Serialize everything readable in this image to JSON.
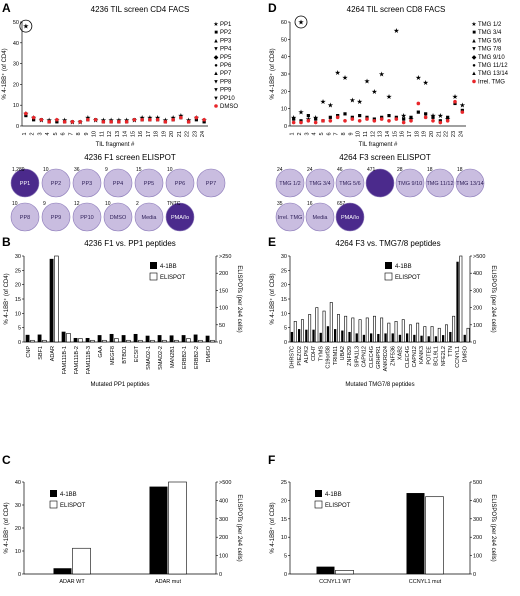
{
  "panels": {
    "A": {
      "letter": "A",
      "title": "4236 TIL screen CD4 FACS"
    },
    "D": {
      "letter": "D",
      "title": "4264 TIL screen CD8 FACS"
    },
    "E1": {
      "title": "4236 F1 screen ELISPOT"
    },
    "E2": {
      "title": "4264 F3 screen ELISPOT"
    },
    "B": {
      "letter": "B",
      "title": "4236 F1 vs. PP1 peptides"
    },
    "E": {
      "letter": "E",
      "title": "4264 F3 vs. TMG7/8 peptides"
    },
    "C": {
      "letter": "C"
    },
    "F": {
      "letter": "F"
    }
  },
  "elispot_left": [
    {
      "label": "PP1",
      "count": "1,289",
      "dark": true
    },
    {
      "label": "PP2",
      "count": "10",
      "dark": false
    },
    {
      "label": "PP3",
      "count": "36",
      "dark": false
    },
    {
      "label": "PP4",
      "count": "9",
      "dark": false
    },
    {
      "label": "PP5",
      "count": "15",
      "dark": false
    },
    {
      "label": "PP6",
      "count": "10",
      "dark": false
    },
    {
      "label": "PP7",
      "count": "",
      "dark": false
    },
    {
      "label": "PP8",
      "count": "10",
      "dark": false
    },
    {
      "label": "PP9",
      "count": "9",
      "dark": false
    },
    {
      "label": "PP10",
      "count": "12",
      "dark": false
    },
    {
      "label": "DMSO",
      "count": "10",
      "dark": false
    },
    {
      "label": "Media",
      "count": "2",
      "dark": false
    },
    {
      "label": "PMA/Io",
      "count": "TNTC",
      "dark": true
    }
  ],
  "elispot_right": [
    {
      "label": "TMG 1/2",
      "count": "24",
      "dark": false
    },
    {
      "label": "TMG 3/4",
      "count": "24",
      "dark": false
    },
    {
      "label": "TMG 5/6",
      "count": "46",
      "dark": false
    },
    {
      "label": "",
      "count": "471",
      "dark": true
    },
    {
      "label": "TMG 9/10",
      "count": "28",
      "dark": false
    },
    {
      "label": "TMG 11/12",
      "count": "18",
      "dark": false
    },
    {
      "label": "TMG 13/14",
      "count": "18",
      "dark": false
    },
    {
      "label": "Irrel. TMG",
      "count": "35",
      "dark": false
    },
    {
      "label": "Media",
      "count": "16",
      "dark": false
    },
    {
      "label": "PMA/Io",
      "count": "657",
      "dark": true
    }
  ],
  "chart_data": [
    {
      "id": "A",
      "type": "scatter",
      "title": "4236 TIL screen CD4 FACS",
      "xlabel": "TIL fragment #",
      "ylabel": "% 4-1BB⁺ (of CD4)",
      "ylim": [
        0,
        50
      ],
      "yticks": [
        0,
        10,
        20,
        30,
        40,
        50
      ],
      "categories": [
        "1",
        "2",
        "3",
        "4",
        "5",
        "6",
        "7",
        "8",
        "9",
        "10",
        "11",
        "12",
        "13",
        "14",
        "15",
        "16",
        "17",
        "18",
        "19",
        "20",
        "21",
        "22",
        "23",
        "24"
      ],
      "series": [
        {
          "name": "PP1",
          "values": [
            6,
            4,
            3,
            3,
            3,
            3,
            2,
            2,
            4,
            3,
            3,
            3,
            3,
            3,
            3,
            4,
            4,
            4,
            3,
            4,
            5,
            3,
            4,
            3
          ]
        },
        {
          "name": "PP2",
          "values": [
            5,
            3,
            3,
            2,
            2,
            2,
            2,
            2,
            3,
            3,
            2,
            2,
            2,
            2,
            3,
            3,
            3,
            3,
            2,
            3,
            4,
            2,
            3,
            2
          ]
        },
        {
          "name": "DMSO",
          "values": [
            6,
            4,
            3,
            2,
            3,
            2,
            2,
            2,
            3,
            3,
            2,
            2,
            2,
            2,
            3,
            3,
            3,
            3,
            2,
            3,
            4,
            2,
            4,
            3
          ]
        }
      ],
      "outliers": [
        {
          "x": "1",
          "y": 48,
          "series": "PP1"
        }
      ],
      "legend": [
        "PP1",
        "PP2",
        "PP3",
        "PP4",
        "PP5",
        "PP6",
        "PP7",
        "PP8",
        "PP9",
        "PP10",
        "DMSO"
      ]
    },
    {
      "id": "D",
      "type": "scatter",
      "title": "4264 TIL screen CD8 FACS",
      "xlabel": "TIL fragment #",
      "ylabel": "% 4-1BB⁺ (of CD8)",
      "ylim": [
        0,
        60
      ],
      "yticks": [
        0,
        10,
        20,
        30,
        40,
        50,
        60
      ],
      "categories": [
        "1",
        "2",
        "3",
        "4",
        "5",
        "6",
        "7",
        "8",
        "9",
        "10",
        "11",
        "12",
        "13",
        "14",
        "15",
        "16",
        "17",
        "18",
        "19",
        "20",
        "21",
        "22",
        "23",
        "24"
      ],
      "series": [
        {
          "name": "TMG 1/2",
          "values": [
            4,
            3,
            6,
            4,
            3,
            5,
            6,
            7,
            5,
            6,
            5,
            4,
            5,
            6,
            5,
            4,
            5,
            8,
            7,
            5,
            3,
            5,
            13,
            9
          ]
        },
        {
          "name": "TMG 7/8",
          "values": [
            5,
            8,
            4,
            5,
            14,
            12,
            31,
            28,
            15,
            14,
            26,
            20,
            30,
            17,
            55,
            6,
            4,
            28,
            25,
            6,
            6,
            4,
            17,
            12
          ]
        },
        {
          "name": "Irrel. TMG",
          "values": [
            2,
            2,
            3,
            2,
            3,
            3,
            5,
            3,
            4,
            3,
            4,
            3,
            4,
            3,
            4,
            2,
            3,
            13,
            5,
            3,
            2,
            3,
            14,
            8
          ]
        }
      ],
      "outliers": [
        {
          "x": "2",
          "y": 60,
          "series": "TMG 7/8"
        }
      ],
      "legend": [
        "TMG 1/2",
        "TMG 3/4",
        "TMG 5/6",
        "TMG 7/8",
        "TMG 9/10",
        "TMG 11/12",
        "TMG 13/14",
        "Irrel. TMG"
      ]
    },
    {
      "id": "B",
      "type": "bar",
      "title": "4236 F1 vs. PP1 peptides",
      "xlabel": "Mutated PP1 peptides",
      "ylabel": "% 4-1BB⁺ (of CD4)",
      "ylabel2": "ELISPOTs (per 2e4 cells)",
      "ylim": [
        0,
        30
      ],
      "yticks": [
        0,
        5,
        10,
        15,
        20,
        25,
        30
      ],
      "y2ticks": [
        "0",
        "50",
        "100",
        "150",
        "200",
        ">250"
      ],
      "categories": [
        "CNP",
        "SBF1",
        "ADAR",
        "FAM111B-1",
        "FAM111B-2",
        "FAM111B-3",
        "GAA",
        "MEGF8",
        "BTBD1",
        "ECSIT",
        "SMAD2-1",
        "SMAD2-2",
        "MAN2B1",
        "ERBB2-1",
        "ERBB2-2",
        "DMSO"
      ],
      "series": [
        {
          "name": "4-1BB",
          "values": [
            2.5,
            2.6,
            29,
            3.6,
            1.4,
            1.4,
            2.4,
            2.8,
            2.4,
            2.8,
            2.2,
            2.4,
            2.3,
            2.4,
            2.6,
            2.2
          ]
        },
        {
          "name": "ELISPOT",
          "values": [
            5,
            5,
            250,
            25,
            10,
            5,
            5,
            10,
            5,
            5,
            5,
            5,
            5,
            10,
            5,
            5
          ]
        }
      ],
      "legend": [
        "4-1BB",
        "ELISPOT"
      ]
    },
    {
      "id": "E",
      "type": "bar",
      "title": "4264 F3 vs. TMG7/8 peptides",
      "xlabel": "Mutated TMG7/8 peptides",
      "ylabel": "% 4-1BB⁺ (of CD8)",
      "ylabel2": "ELISPOTs (per 2e4 cells)",
      "ylim": [
        0,
        30
      ],
      "yticks": [
        0,
        5,
        10,
        15,
        20,
        25,
        30
      ],
      "y2ticks": [
        "0",
        "100",
        "200",
        "300",
        "400",
        ">500"
      ],
      "categories": [
        "DHRS7C",
        "PIEZO2",
        "ALPK2",
        "CDH7",
        "TYMS",
        "C19orf38",
        "TRIM11",
        "UBA2",
        "ZNF829",
        "SIPA1L3",
        "CAPN12",
        "CLEC4G",
        "GRHPR1",
        "ANKRD24",
        "ZNF536",
        "XAB2",
        "CLEC4G",
        "CAPN12",
        "KANK3",
        "POTEE",
        "BCL9L1",
        "NFE2L2",
        "TTN",
        "CCNYL1",
        "DMSO"
      ],
      "series": [
        {
          "name": "4-1BB",
          "values": [
            3.5,
            4.5,
            4.3,
            4.3,
            3.2,
            5.5,
            4.5,
            4,
            3.5,
            3,
            2.5,
            3,
            2.8,
            3,
            3,
            2.5,
            3,
            2.5,
            2.2,
            2,
            2,
            2.4,
            3.5,
            28,
            2.5
          ]
        },
        {
          "name": "ELISPOT",
          "values": [
            120,
            130,
            160,
            200,
            180,
            230,
            160,
            150,
            140,
            130,
            140,
            150,
            140,
            110,
            120,
            130,
            100,
            110,
            90,
            90,
            80,
            100,
            150,
            500,
            80
          ]
        }
      ],
      "legend": [
        "4-1BB",
        "ELISPOT"
      ]
    },
    {
      "id": "C",
      "type": "bar",
      "ylabel": "% 4-1BB⁺ (of CD4)",
      "ylabel2": "ELISPOTs (per 2e4 cells)",
      "ylim": [
        0,
        40
      ],
      "yticks": [
        0,
        10,
        20,
        30,
        40
      ],
      "y2ticks": [
        "0",
        "100",
        "200",
        "300",
        "400",
        ">500"
      ],
      "categories": [
        "ADAR WT",
        "ADAR mut"
      ],
      "series": [
        {
          "name": "4-1BB",
          "values": [
            2.5,
            38
          ]
        },
        {
          "name": "ELISPOT",
          "values": [
            140,
            500
          ]
        }
      ],
      "legend": [
        "4-1BB",
        "ELISPOT"
      ]
    },
    {
      "id": "F",
      "type": "bar",
      "ylabel": "% 4-1BB⁺ (of CD8)",
      "ylabel2": "ELISPOTs (per 2e4 cells)",
      "ylim": [
        0,
        25
      ],
      "yticks": [
        0,
        5,
        10,
        15,
        20,
        25
      ],
      "y2ticks": [
        "0",
        "100",
        "200",
        "300",
        "400",
        "500"
      ],
      "categories": [
        "CCNYL1 WT",
        "CCNYL1 mut"
      ],
      "series": [
        {
          "name": "4-1BB",
          "values": [
            2,
            22
          ]
        },
        {
          "name": "ELISPOT",
          "values": [
            20,
            420
          ]
        }
      ],
      "legend": [
        "4-1BB",
        "ELISPOT"
      ]
    }
  ]
}
